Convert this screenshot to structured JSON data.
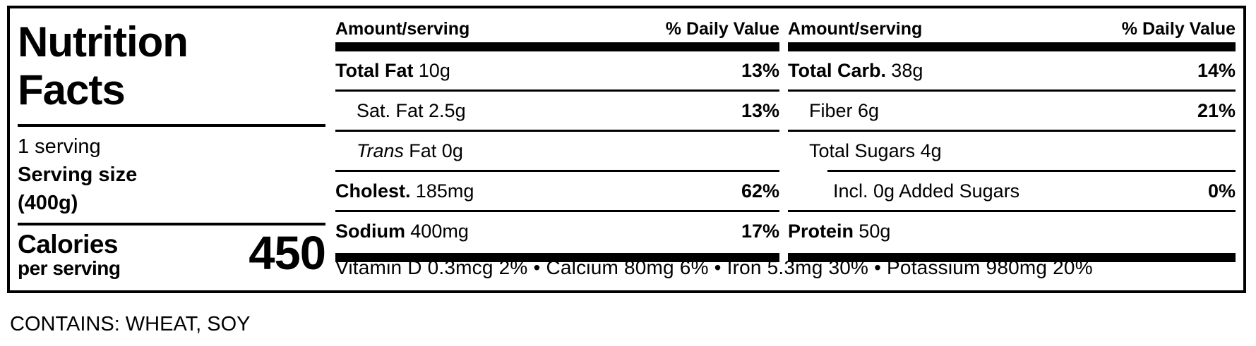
{
  "colors": {
    "text": "#000000",
    "background": "#ffffff"
  },
  "title": {
    "line1": "Nutrition",
    "line2": "Facts"
  },
  "serving": {
    "count": "1 serving",
    "size_label": "Serving size",
    "size_value": "(400g)"
  },
  "calories": {
    "label": "Calories",
    "sublabel": "per serving",
    "value": "450"
  },
  "middle": {
    "header": {
      "amount": "Amount/serving",
      "dv": "% Daily Value"
    },
    "rows": [
      {
        "bold": "Total Fat",
        "italic": "",
        "text": "10g",
        "pct": "13%"
      },
      {
        "bold": "",
        "italic": "",
        "text": "Sat. Fat 2.5g",
        "pct": "13%"
      },
      {
        "bold": "",
        "italic": "Trans",
        "text": "Fat 0g",
        "pct": ""
      },
      {
        "bold": "Cholest.",
        "italic": "",
        "text": "185mg",
        "pct": "62%"
      },
      {
        "bold": "Sodium",
        "italic": "",
        "text": "400mg",
        "pct": "17%"
      }
    ]
  },
  "right": {
    "header": {
      "amount": "Amount/serving",
      "dv": "% Daily Value"
    },
    "rows": [
      {
        "bold": "Total Carb.",
        "italic": "",
        "text": "38g",
        "pct": "14%"
      },
      {
        "bold": "",
        "italic": "",
        "text": "Fiber 6g",
        "pct": "21%"
      },
      {
        "bold": "",
        "italic": "",
        "text": "Total Sugars 4g",
        "pct": ""
      },
      {
        "bold": "",
        "italic": "",
        "text": "Incl. 0g Added Sugars",
        "pct": "0%"
      },
      {
        "bold": "Protein",
        "italic": "",
        "text": "50g",
        "pct": ""
      }
    ]
  },
  "micronutrients": "Vitamin D 0.3mcg 2% • Calcium 80mg 6% • Iron 5.3mg 30% • Potassium 980mg 20%",
  "allergens": "CONTAINS: WHEAT, SOY"
}
